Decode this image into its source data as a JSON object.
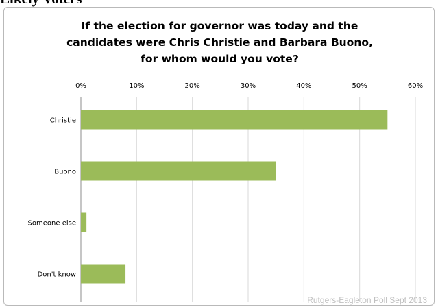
{
  "page_header": "Likely Voters",
  "chart_data": {
    "type": "bar",
    "orientation": "horizontal",
    "title_lines": [
      "If the election for governor was today and the",
      "candidates were Chris Christie and Barbara Buono,",
      "for whom would you vote?"
    ],
    "categories": [
      "Christie",
      "Buono",
      "Someone else",
      "Don't know"
    ],
    "values": [
      55,
      35,
      1,
      8
    ],
    "xlim": [
      0,
      60
    ],
    "x_ticks": [
      "0%",
      "10%",
      "20%",
      "30%",
      "40%",
      "50%",
      "60%"
    ],
    "x_axis_position": "top",
    "grid": true,
    "legend": "none",
    "bar_color": "#9bbb59",
    "grid_color": "#d9d9d9",
    "source": "Rutgers-Eagleton Poll Sept 2013"
  }
}
